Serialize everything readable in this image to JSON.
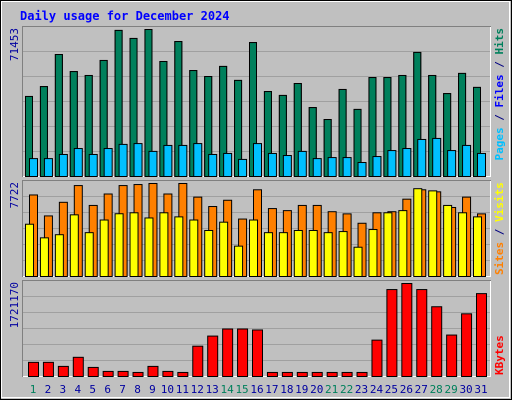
{
  "chart_data": [
    {
      "type": "bar",
      "title": "Daily usage for December 2024",
      "separator": " / ",
      "ylim": [
        0,
        71453
      ],
      "yticks": [
        71453
      ],
      "series": [
        {
          "name": "Pages",
          "color": "#00c0ff",
          "values": [
            8700,
            8700,
            10700,
            13600,
            10700,
            13600,
            15600,
            16000,
            12200,
            15100,
            15100,
            16000,
            10700,
            11200,
            8300,
            16000,
            11200,
            10200,
            12200,
            8700,
            9200,
            9200,
            6800,
            9700,
            12600,
            13600,
            18000,
            18500,
            12600,
            15100,
            11200
          ]
        },
        {
          "name": "Files",
          "color": "#0000ff",
          "values": [
            38900,
            43700,
            59300,
            51000,
            49100,
            56400,
            71000,
            67100,
            71453,
            55900,
            65600,
            51500,
            48600,
            53500,
            46700,
            65100,
            41300,
            39400,
            45200,
            33500,
            27700,
            42300,
            32600,
            48100,
            48100,
            49100,
            60300,
            49100,
            40300,
            50100,
            43300
          ]
        },
        {
          "name": "Hits",
          "color": "#00805c",
          "values": [
            38900,
            43700,
            59300,
            51000,
            49100,
            56400,
            71000,
            67100,
            71453,
            55900,
            65600,
            51500,
            48600,
            53500,
            46700,
            65100,
            41300,
            39400,
            45200,
            33500,
            27700,
            42300,
            32600,
            48100,
            48100,
            49100,
            60300,
            49100,
            40300,
            50100,
            43300
          ]
        }
      ]
    },
    {
      "type": "bar",
      "separator": " / ",
      "ylim": [
        0,
        7722
      ],
      "yticks": [
        7722
      ],
      "series": [
        {
          "name": "Sites",
          "color": "#ff8000",
          "values": [
            6770,
            5030,
            6160,
            7550,
            5900,
            6850,
            7550,
            7635,
            7722,
            6850,
            7722,
            6590,
            5810,
            6330,
            4770,
            7200,
            5640,
            5470,
            5900,
            5900,
            5380,
            5200,
            4420,
            5290,
            5380,
            6420,
            7200,
            7030,
            5730,
            6590,
            5200
          ]
        },
        {
          "name": "Visits",
          "color": "#ffff00",
          "values": [
            4340,
            3210,
            3470,
            5120,
            3640,
            4690,
            5210,
            5290,
            4860,
            5290,
            4950,
            4690,
            3820,
            4510,
            2520,
            4690,
            3640,
            3640,
            3820,
            3820,
            3640,
            3730,
            2430,
            3900,
            5290,
            5470,
            7290,
            7110,
            5900,
            5290,
            4950
          ]
        }
      ]
    },
    {
      "type": "bar",
      "ylim": [
        0,
        1721170
      ],
      "yticks": [
        1721170
      ],
      "categories": [
        "1",
        "2",
        "3",
        "4",
        "5",
        "6",
        "7",
        "8",
        "9",
        "10",
        "11",
        "12",
        "13",
        "14",
        "15",
        "16",
        "17",
        "18",
        "19",
        "20",
        "21",
        "22",
        "23",
        "24",
        "25",
        "26",
        "27",
        "28",
        "29",
        "30",
        "31"
      ],
      "label_colors": [
        "#00805c",
        "#0000a0",
        "#0000a0",
        "#0000a0",
        "#0000a0",
        "#0000a0",
        "#0000a0",
        "#0000a0",
        "#0000a0",
        "#0000a0",
        "#0000a0",
        "#0000a0",
        "#0000a0",
        "#00805c",
        "#00805c",
        "#0000a0",
        "#0000a0",
        "#0000a0",
        "#0000a0",
        "#0000a0",
        "#00805c",
        "#00805c",
        "#0000a0",
        "#0000a0",
        "#0000a0",
        "#0000a0",
        "#0000a0",
        "#00805c",
        "#00805c",
        "#0000a0",
        "#0000a0"
      ],
      "series": [
        {
          "name": "KBytes",
          "color": "#ff0000",
          "values": [
            262000,
            262000,
            187000,
            355000,
            168000,
            94000,
            94000,
            75000,
            187000,
            94000,
            75000,
            561000,
            748000,
            879000,
            879000,
            861000,
            75000,
            75000,
            75000,
            75000,
            75000,
            75000,
            75000,
            673000,
            1609000,
            1721170,
            1609000,
            1291000,
            767000,
            1160000,
            1534000
          ]
        }
      ]
    }
  ]
}
